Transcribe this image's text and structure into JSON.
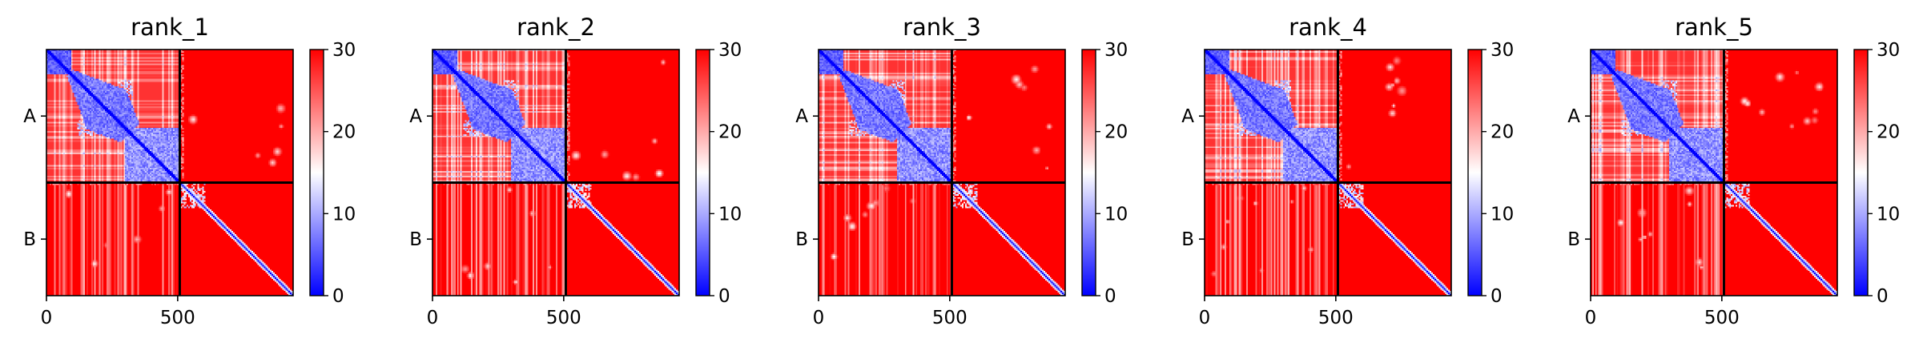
{
  "chart_data": [
    {
      "type": "heatmap",
      "title": "rank_1",
      "x_ticks": [
        0,
        500
      ],
      "x_range": [
        0,
        940
      ],
      "y_range": [
        0,
        940
      ],
      "chain_boundary": 508,
      "chain_labels": [
        "A",
        "B"
      ],
      "colorbar": {
        "min": 0,
        "max": 30,
        "ticks": [
          0,
          10,
          20,
          30
        ],
        "colors": [
          "#0000ff",
          "#ffffff",
          "#ff0000"
        ]
      },
      "grid": false
    },
    {
      "type": "heatmap",
      "title": "rank_2",
      "x_ticks": [
        0,
        500
      ],
      "x_range": [
        0,
        940
      ],
      "y_range": [
        0,
        940
      ],
      "chain_boundary": 508,
      "chain_labels": [
        "A",
        "B"
      ],
      "colorbar": {
        "min": 0,
        "max": 30,
        "ticks": [
          0,
          10,
          20,
          30
        ],
        "colors": [
          "#0000ff",
          "#ffffff",
          "#ff0000"
        ]
      },
      "grid": false
    },
    {
      "type": "heatmap",
      "title": "rank_3",
      "x_ticks": [
        0,
        500
      ],
      "x_range": [
        0,
        940
      ],
      "y_range": [
        0,
        940
      ],
      "chain_boundary": 508,
      "chain_labels": [
        "A",
        "B"
      ],
      "colorbar": {
        "min": 0,
        "max": 30,
        "ticks": [
          0,
          10,
          20,
          30
        ],
        "colors": [
          "#0000ff",
          "#ffffff",
          "#ff0000"
        ]
      },
      "grid": false
    },
    {
      "type": "heatmap",
      "title": "rank_4",
      "x_ticks": [
        0,
        500
      ],
      "x_range": [
        0,
        940
      ],
      "y_range": [
        0,
        940
      ],
      "chain_boundary": 508,
      "chain_labels": [
        "A",
        "B"
      ],
      "colorbar": {
        "min": 0,
        "max": 30,
        "ticks": [
          0,
          10,
          20,
          30
        ],
        "colors": [
          "#0000ff",
          "#ffffff",
          "#ff0000"
        ]
      },
      "grid": false
    },
    {
      "type": "heatmap",
      "title": "rank_5",
      "x_ticks": [
        0,
        500
      ],
      "x_range": [
        0,
        940
      ],
      "y_range": [
        0,
        940
      ],
      "chain_boundary": 508,
      "chain_labels": [
        "A",
        "B"
      ],
      "colorbar": {
        "min": 0,
        "max": 30,
        "ticks": [
          0,
          10,
          20,
          30
        ],
        "colors": [
          "#0000ff",
          "#ffffff",
          "#ff0000"
        ]
      },
      "grid": false
    }
  ]
}
